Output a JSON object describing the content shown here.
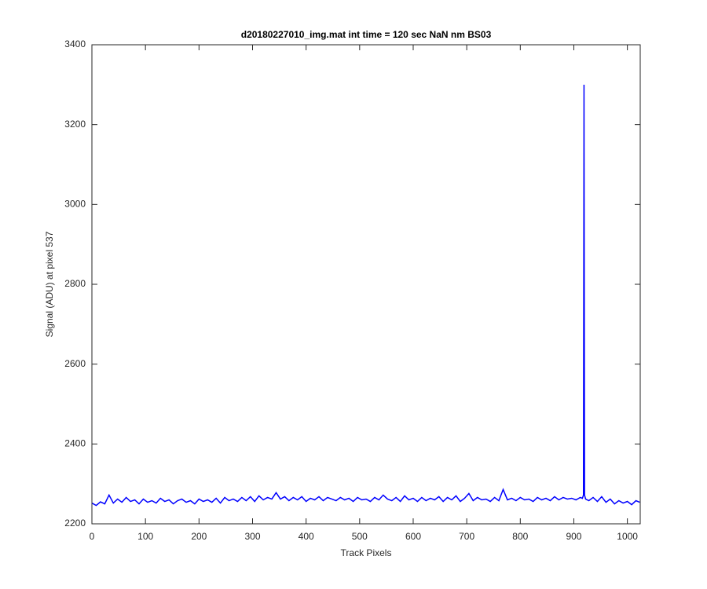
{
  "chart_data": {
    "type": "line",
    "title": "d20180227010_img.mat int time = 120 sec  NaN nm BS03",
    "x_label": "Track Pixels",
    "y_label": "Signal (ADU) at pixel 537",
    "color": "#0000ff",
    "xlim": [
      0,
      1024
    ],
    "xticks": [
      0,
      100,
      200,
      300,
      400,
      500,
      600,
      700,
      800,
      900,
      1000
    ],
    "ylim": [
      2200,
      3400
    ],
    "yticks": [
      2200,
      2400,
      2600,
      2800,
      3000,
      3200,
      3400
    ],
    "grid": false,
    "x": [
      0,
      8,
      16,
      24,
      32,
      40,
      48,
      56,
      64,
      72,
      80,
      88,
      96,
      104,
      112,
      120,
      128,
      136,
      144,
      152,
      160,
      168,
      176,
      184,
      192,
      200,
      208,
      216,
      224,
      232,
      240,
      248,
      256,
      264,
      272,
      280,
      288,
      296,
      304,
      312,
      320,
      328,
      336,
      344,
      352,
      360,
      368,
      376,
      384,
      392,
      400,
      408,
      416,
      424,
      432,
      440,
      448,
      456,
      464,
      472,
      480,
      488,
      496,
      504,
      512,
      520,
      528,
      536,
      544,
      552,
      560,
      568,
      576,
      584,
      592,
      600,
      608,
      616,
      624,
      632,
      640,
      648,
      656,
      664,
      672,
      680,
      688,
      696,
      704,
      712,
      720,
      728,
      736,
      744,
      752,
      760,
      768,
      776,
      784,
      792,
      800,
      808,
      816,
      824,
      832,
      840,
      848,
      856,
      864,
      872,
      880,
      888,
      896,
      904,
      912,
      916,
      918,
      919,
      920,
      922,
      928,
      936,
      944,
      952,
      960,
      968,
      976,
      984,
      992,
      1000,
      1008,
      1016,
      1023
    ],
    "values": [
      2252,
      2246,
      2255,
      2250,
      2272,
      2252,
      2262,
      2254,
      2266,
      2256,
      2260,
      2250,
      2262,
      2254,
      2258,
      2252,
      2264,
      2256,
      2260,
      2250,
      2258,
      2262,
      2254,
      2258,
      2250,
      2262,
      2256,
      2260,
      2254,
      2264,
      2252,
      2266,
      2258,
      2262,
      2256,
      2266,
      2258,
      2268,
      2256,
      2270,
      2260,
      2266,
      2262,
      2278,
      2262,
      2268,
      2258,
      2266,
      2260,
      2268,
      2256,
      2264,
      2260,
      2268,
      2258,
      2266,
      2262,
      2258,
      2266,
      2260,
      2264,
      2256,
      2266,
      2260,
      2262,
      2256,
      2266,
      2260,
      2272,
      2262,
      2258,
      2266,
      2256,
      2270,
      2260,
      2264,
      2256,
      2266,
      2258,
      2264,
      2260,
      2268,
      2256,
      2266,
      2260,
      2270,
      2256,
      2264,
      2276,
      2258,
      2266,
      2260,
      2262,
      2256,
      2266,
      2258,
      2286,
      2260,
      2264,
      2258,
      2266,
      2260,
      2262,
      2256,
      2266,
      2260,
      2264,
      2258,
      2268,
      2260,
      2266,
      2262,
      2264,
      2260,
      2266,
      2264,
      2272,
      3300,
      2272,
      2262,
      2258,
      2266,
      2256,
      2268,
      2254,
      2262,
      2250,
      2258,
      2252,
      2256,
      2248,
      2258,
      2254
    ]
  }
}
